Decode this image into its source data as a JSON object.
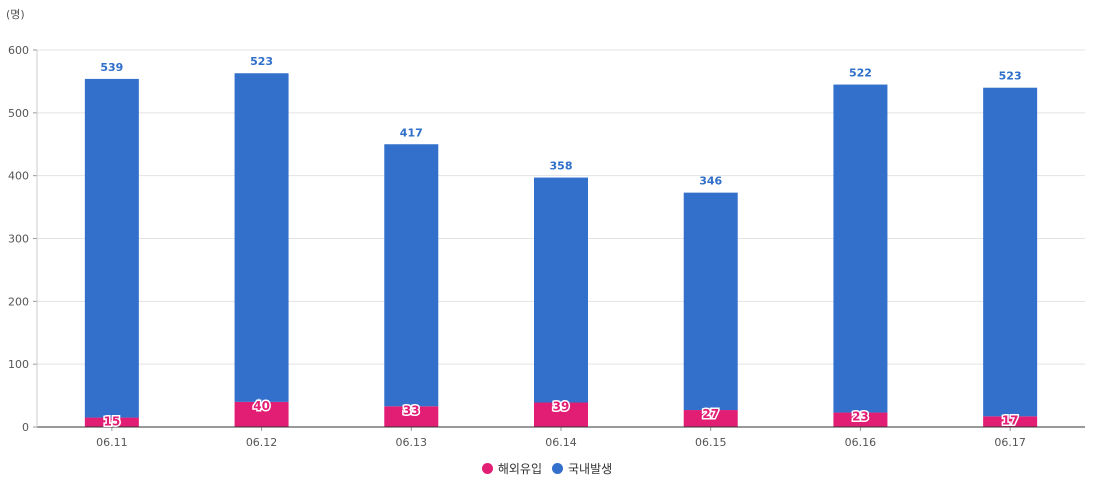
{
  "chart_data": {
    "type": "bar",
    "stacked": true,
    "unit": "(명)",
    "categories": [
      "06.11",
      "06.12",
      "06.13",
      "06.14",
      "06.15",
      "06.16",
      "06.17"
    ],
    "series": [
      {
        "name": "해외유입",
        "color": "#E11D74",
        "values": [
          15,
          40,
          33,
          39,
          27,
          23,
          17
        ]
      },
      {
        "name": "국내발생",
        "color": "#3370CC",
        "values": [
          539,
          523,
          417,
          358,
          346,
          522,
          523
        ]
      }
    ],
    "y_ticks": [
      "0",
      "100",
      "200",
      "300",
      "400",
      "500",
      "600"
    ],
    "ylim": [
      0,
      600
    ],
    "grid": true,
    "legend_position": "bottom-center"
  }
}
